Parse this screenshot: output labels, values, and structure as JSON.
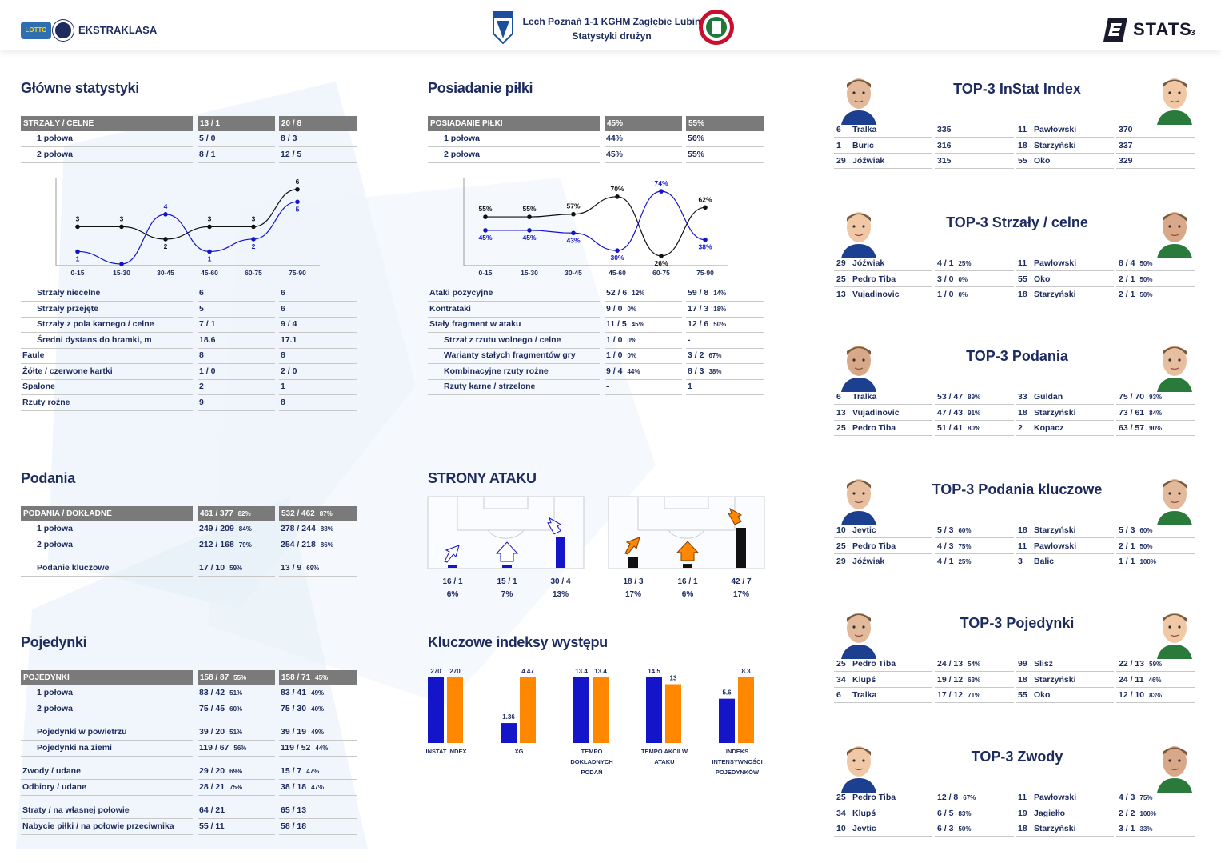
{
  "header": {
    "league": "EKSTRAKLASA",
    "lotto": "LOTTO",
    "match_title": "Lech Poznań 1-1 KGHM Zagłębie Lubin",
    "subtitle": "Statystyki drużyn",
    "stats_brand": "STATS",
    "page_number": "3"
  },
  "main_stats": {
    "title": "Główne statystyki",
    "header": {
      "label": "STRZAŁY / CELNE",
      "home": "13 / 1",
      "away": "20 / 8"
    },
    "halves": [
      {
        "label": "1 połowa",
        "home": "5 / 0",
        "away": "8 / 3"
      },
      {
        "label": "2 połowa",
        "home": "8 / 1",
        "away": "12 / 5"
      }
    ],
    "rows": [
      {
        "label": "Strzały niecelne",
        "home": "6",
        "away": "6",
        "indent": true
      },
      {
        "label": "Strzały przejęte",
        "home": "5",
        "away": "6",
        "indent": true
      },
      {
        "label": "Strzały z pola karnego / celne",
        "home": "7 / 1",
        "away": "9 / 4",
        "indent": true
      },
      {
        "label": "Średni dystans do bramki, m",
        "home": "18.6",
        "away": "17.1",
        "indent": true
      },
      {
        "label": "Faule",
        "home": "8",
        "away": "8",
        "indent": false
      },
      {
        "label": "Żółte / czerwone kartki",
        "home": "1 / 0",
        "away": "2 / 0",
        "indent": false
      },
      {
        "label": "Spalone",
        "home": "2",
        "away": "1",
        "indent": false
      },
      {
        "label": "Rzuty rożne",
        "home": "9",
        "away": "8",
        "indent": false
      }
    ]
  },
  "possession": {
    "title": "Posiadanie piłki",
    "header": {
      "label": "POSIADANIE PIŁKI",
      "home": "45%",
      "away": "55%"
    },
    "halves": [
      {
        "label": "1 połowa",
        "home": "44%",
        "away": "56%"
      },
      {
        "label": "2 połowa",
        "home": "45%",
        "away": "55%"
      }
    ],
    "rows": [
      {
        "label": "Ataki pozycyjne",
        "home": "52 / 6",
        "home_pct": "12%",
        "away": "59 / 8",
        "away_pct": "14%",
        "indent": false
      },
      {
        "label": "Kontrataki",
        "home": "9 / 0",
        "home_pct": "0%",
        "away": "17 / 3",
        "away_pct": "18%",
        "indent": false
      },
      {
        "label": "Stały fragment w ataku",
        "home": "11 / 5",
        "home_pct": "45%",
        "away": "12 / 6",
        "away_pct": "50%",
        "indent": false
      },
      {
        "label": "Strzał z rzutu wolnego / celne",
        "home": "1 / 0",
        "home_pct": "0%",
        "away": "-",
        "away_pct": "",
        "indent": true
      },
      {
        "label": "Warianty stałych fragmentów gry",
        "home": "1 / 0",
        "home_pct": "0%",
        "away": "3 / 2",
        "away_pct": "67%",
        "indent": true
      },
      {
        "label": "Kombinacyjne rzuty rożne",
        "home": "9 / 4",
        "home_pct": "44%",
        "away": "8 / 3",
        "away_pct": "38%",
        "indent": true
      },
      {
        "label": "Rzuty karne / strzelone",
        "home": "-",
        "home_pct": "",
        "away": "1",
        "away_pct": "",
        "indent": true
      }
    ]
  },
  "passes": {
    "title": "Podania",
    "header": {
      "label": "PODANIA / DOKŁADNE",
      "home": "461 / 377",
      "home_pct": "82%",
      "away": "532 / 462",
      "away_pct": "87%"
    },
    "rows": [
      {
        "label": "1 połowa",
        "home": "249 / 209",
        "home_pct": "84%",
        "away": "278 / 244",
        "away_pct": "88%"
      },
      {
        "label": "2 połowa",
        "home": "212 / 168",
        "home_pct": "79%",
        "away": "254 / 218",
        "away_pct": "86%"
      },
      {
        "label": "Podanie kluczowe",
        "home": "17 / 10",
        "home_pct": "59%",
        "away": "13 / 9",
        "away_pct": "69%"
      }
    ]
  },
  "duels": {
    "title": "Pojedynki",
    "header": {
      "label": "POJEDYNKI",
      "home": "158 / 87",
      "home_pct": "55%",
      "away": "158 / 71",
      "away_pct": "45%"
    },
    "rows": [
      {
        "label": "1 połowa",
        "home": "83 / 42",
        "home_pct": "51%",
        "away": "83 / 41",
        "away_pct": "49%",
        "indent": true
      },
      {
        "label": "2 połowa",
        "home": "75 / 45",
        "home_pct": "60%",
        "away": "75 / 30",
        "away_pct": "40%",
        "indent": true
      },
      {
        "label": "Pojedynki w powietrzu",
        "home": "39 / 20",
        "home_pct": "51%",
        "away": "39 / 19",
        "away_pct": "49%",
        "indent": true
      },
      {
        "label": "Pojedynki na ziemi",
        "home": "119 / 67",
        "home_pct": "56%",
        "away": "119 / 52",
        "away_pct": "44%",
        "indent": true
      },
      {
        "label": "Zwody / udane",
        "home": "29 / 20",
        "home_pct": "69%",
        "away": "15 / 7",
        "away_pct": "47%",
        "indent": false
      },
      {
        "label": "Odbiory / udane",
        "home": "28 / 21",
        "home_pct": "75%",
        "away": "38 / 18",
        "away_pct": "47%",
        "indent": false
      },
      {
        "label": "Straty / na własnej połowie",
        "home": "64 / 21",
        "home_pct": "",
        "away": "65 / 13",
        "away_pct": "",
        "indent": false
      },
      {
        "label": "Nabycie piłki / na połowie przeciwnika",
        "home": "55 / 11",
        "home_pct": "",
        "away": "58 / 18",
        "away_pct": "",
        "indent": false
      }
    ]
  },
  "attack_sides": {
    "title": "STRONY ATAKU",
    "home": [
      {
        "value": "16 / 1",
        "pct": "6%"
      },
      {
        "value": "15 / 1",
        "pct": "7%"
      },
      {
        "value": "30 / 4",
        "pct": "13%"
      }
    ],
    "away": [
      {
        "value": "18 / 3",
        "pct": "17%"
      },
      {
        "value": "16 / 1",
        "pct": "6%"
      },
      {
        "value": "42 / 7",
        "pct": "17%"
      }
    ]
  },
  "key_indices": {
    "title": "Kluczowe indeksy występu"
  },
  "top3": [
    {
      "title": "TOP-3 InStat Index",
      "home": [
        {
          "num": "6",
          "name": "Tralka",
          "val": "335",
          "pct": ""
        },
        {
          "num": "1",
          "name": "Buric",
          "val": "316",
          "pct": ""
        },
        {
          "num": "29",
          "name": "Jóźwiak",
          "val": "315",
          "pct": ""
        }
      ],
      "away": [
        {
          "num": "11",
          "name": "Pawłowski",
          "val": "370",
          "pct": ""
        },
        {
          "num": "18",
          "name": "Starzyński",
          "val": "337",
          "pct": ""
        },
        {
          "num": "55",
          "name": "Oko",
          "val": "329",
          "pct": ""
        }
      ]
    },
    {
      "title": "TOP-3 Strzały / celne",
      "home": [
        {
          "num": "29",
          "name": "Jóźwiak",
          "val": "4 / 1",
          "pct": "25%"
        },
        {
          "num": "25",
          "name": "Pedro Tiba",
          "val": "3 / 0",
          "pct": "0%"
        },
        {
          "num": "13",
          "name": "Vujadinovic",
          "val": "1 / 0",
          "pct": "0%"
        }
      ],
      "away": [
        {
          "num": "11",
          "name": "Pawłowski",
          "val": "8 / 4",
          "pct": "50%"
        },
        {
          "num": "55",
          "name": "Oko",
          "val": "2 / 1",
          "pct": "50%"
        },
        {
          "num": "18",
          "name": "Starzyński",
          "val": "2 / 1",
          "pct": "50%"
        }
      ]
    },
    {
      "title": "TOP-3 Podania",
      "home": [
        {
          "num": "6",
          "name": "Tralka",
          "val": "53 / 47",
          "pct": "89%"
        },
        {
          "num": "13",
          "name": "Vujadinovic",
          "val": "47 / 43",
          "pct": "91%"
        },
        {
          "num": "25",
          "name": "Pedro Tiba",
          "val": "51 / 41",
          "pct": "80%"
        }
      ],
      "away": [
        {
          "num": "33",
          "name": "Guldan",
          "val": "75 / 70",
          "pct": "93%"
        },
        {
          "num": "18",
          "name": "Starzyński",
          "val": "73 / 61",
          "pct": "84%"
        },
        {
          "num": "2",
          "name": "Kopacz",
          "val": "63 / 57",
          "pct": "90%"
        }
      ]
    },
    {
      "title": "TOP-3 Podania kluczowe",
      "home": [
        {
          "num": "10",
          "name": "Jevtic",
          "val": "5 / 3",
          "pct": "60%"
        },
        {
          "num": "25",
          "name": "Pedro Tiba",
          "val": "4 / 3",
          "pct": "75%"
        },
        {
          "num": "29",
          "name": "Jóźwiak",
          "val": "4 / 1",
          "pct": "25%"
        }
      ],
      "away": [
        {
          "num": "18",
          "name": "Starzyński",
          "val": "5 / 3",
          "pct": "60%"
        },
        {
          "num": "11",
          "name": "Pawłowski",
          "val": "2 / 1",
          "pct": "50%"
        },
        {
          "num": "3",
          "name": "Balic",
          "val": "1 / 1",
          "pct": "100%"
        }
      ]
    },
    {
      "title": "TOP-3 Pojedynki",
      "home": [
        {
          "num": "25",
          "name": "Pedro Tiba",
          "val": "24 / 13",
          "pct": "54%"
        },
        {
          "num": "34",
          "name": "Klupś",
          "val": "19 / 12",
          "pct": "63%"
        },
        {
          "num": "6",
          "name": "Tralka",
          "val": "17 / 12",
          "pct": "71%"
        }
      ],
      "away": [
        {
          "num": "99",
          "name": "Slisz",
          "val": "22 / 13",
          "pct": "59%"
        },
        {
          "num": "18",
          "name": "Starzyński",
          "val": "24 / 11",
          "pct": "46%"
        },
        {
          "num": "55",
          "name": "Oko",
          "val": "12 / 10",
          "pct": "83%"
        }
      ]
    },
    {
      "title": "TOP-3 Zwody",
      "home": [
        {
          "num": "25",
          "name": "Pedro Tiba",
          "val": "12 / 8",
          "pct": "67%"
        },
        {
          "num": "34",
          "name": "Klupś",
          "val": "6 / 5",
          "pct": "83%"
        },
        {
          "num": "10",
          "name": "Jevtic",
          "val": "6 / 3",
          "pct": "50%"
        }
      ],
      "away": [
        {
          "num": "11",
          "name": "Pawłowski",
          "val": "4 / 3",
          "pct": "75%"
        },
        {
          "num": "19",
          "name": "Jagiełło",
          "val": "2 / 2",
          "pct": "100%"
        },
        {
          "num": "18",
          "name": "Starzyński",
          "val": "3 / 1",
          "pct": "33%"
        }
      ]
    }
  ],
  "colors": {
    "home": "#1414c8",
    "away": "#ff8800",
    "away_line": "#111111",
    "header_gray": "#7a7a7a",
    "title": "#1d2b5e"
  },
  "chart_data": [
    {
      "type": "line",
      "title": "",
      "categories": [
        "0-15",
        "15-30",
        "30-45",
        "45-60",
        "60-75",
        "75-90"
      ],
      "series": [
        {
          "color": "#111111",
          "values": [
            3,
            3,
            2,
            3,
            3,
            6
          ]
        },
        {
          "color": "#1414c8",
          "values": [
            1,
            0,
            4,
            1,
            2,
            5
          ]
        }
      ],
      "point_labels": [
        [
          "3",
          "3",
          "2",
          "3",
          "3",
          "6"
        ],
        [
          "1",
          "",
          "4",
          "1",
          "2",
          "5"
        ]
      ],
      "ylim": [
        0,
        6.5
      ],
      "grid": false
    },
    {
      "type": "line",
      "title": "",
      "categories": [
        "0-15",
        "15-30",
        "30-45",
        "45-60",
        "60-75",
        "75-90"
      ],
      "series": [
        {
          "color": "#111111",
          "values": [
            55,
            55,
            57,
            70,
            26,
            62
          ]
        },
        {
          "color": "#1414c8",
          "values": [
            45,
            45,
            43,
            30,
            74,
            38
          ]
        }
      ],
      "point_labels": [
        [
          "55%",
          "55%",
          "57%",
          "70%",
          "26%",
          "62%"
        ],
        [
          "45%",
          "45%",
          "43%",
          "30%",
          "74%",
          "38%"
        ]
      ],
      "ylim": [
        20,
        80
      ],
      "grid": false
    },
    {
      "type": "bar",
      "title": "Kluczowe indeksy występu",
      "categories": [
        "INSTAT INDEX",
        "XG",
        "TEMPO DOKŁADNYCH PODAŃ",
        "TEMPO AKCII W ATAKU",
        "INDEKS INTENSYWNOŚCI POJEDYNKÓW"
      ],
      "series": [
        {
          "color": "#1414c8",
          "values": [
            270,
            1.36,
            13.4,
            14.5,
            5.6
          ],
          "labels": [
            "270",
            "1.36",
            "13.4",
            "14.5",
            "5.6"
          ]
        },
        {
          "color": "#ff8800",
          "values": [
            270,
            4.47,
            13.4,
            13,
            8.3
          ],
          "labels": [
            "270",
            "4.47",
            "13.4",
            "13",
            "8.3"
          ]
        }
      ]
    },
    {
      "type": "bar",
      "title": "STRONY ATAKU",
      "categories": [
        "left",
        "center",
        "right"
      ],
      "series": [
        {
          "color": "#1414c8",
          "values": [
            6,
            7,
            13
          ]
        },
        {
          "color": "#111111",
          "values": [
            17,
            6,
            17
          ]
        }
      ]
    }
  ]
}
